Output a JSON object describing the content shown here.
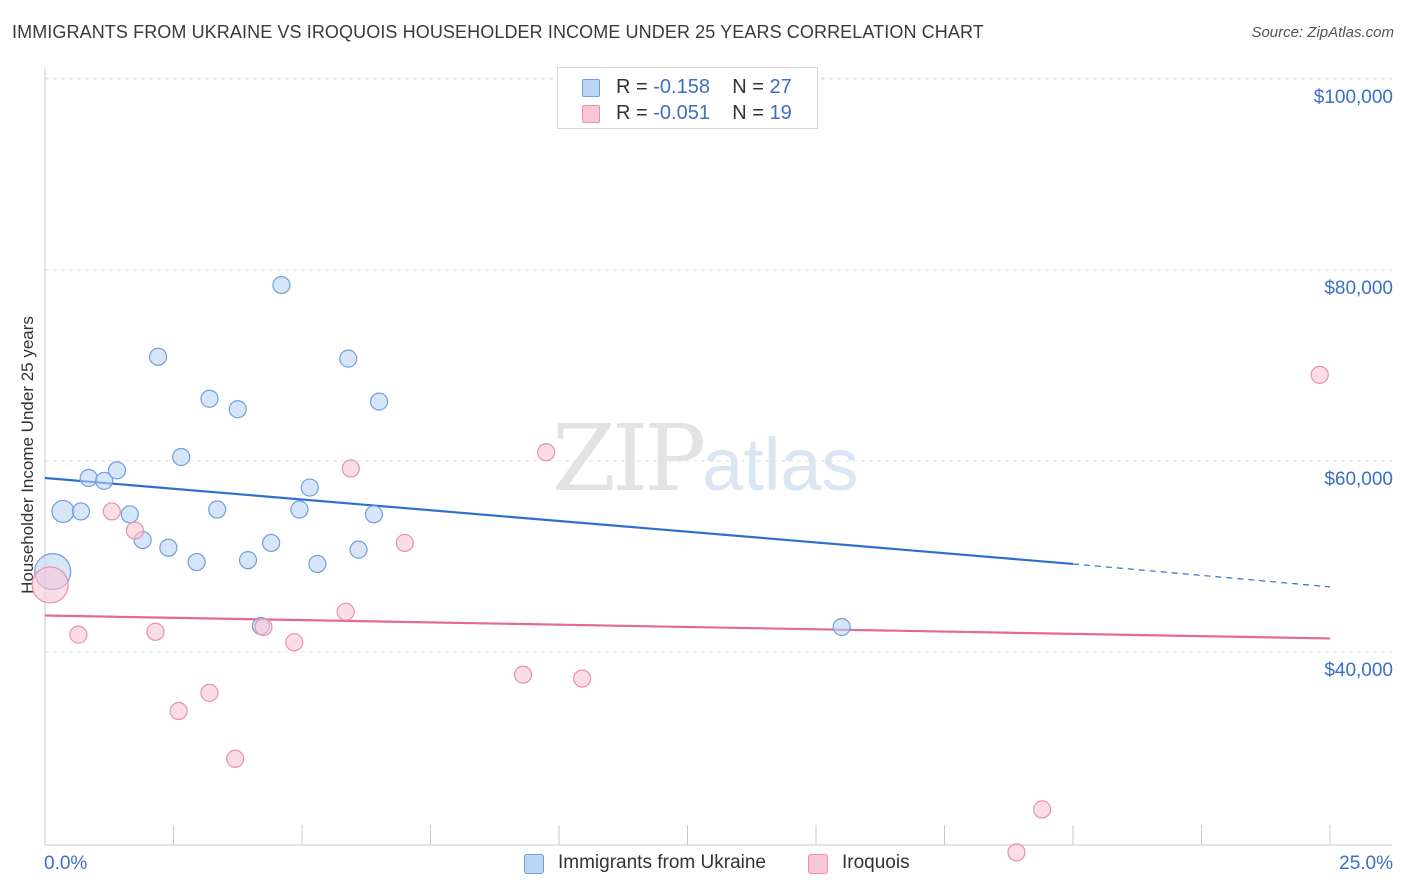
{
  "title": "IMMIGRANTS FROM UKRAINE VS IROQUOIS HOUSEHOLDER INCOME UNDER 25 YEARS CORRELATION CHART",
  "source": "Source: ZipAtlas.com",
  "watermark": {
    "zip": "ZIP",
    "atlas": "atlas"
  },
  "legend_top": [
    {
      "r_label": "R =",
      "r_value": "-0.158",
      "n_label": "N =",
      "n_value": "27"
    },
    {
      "r_label": "R =",
      "r_value": "-0.051",
      "n_label": "N =",
      "n_value": "19"
    }
  ],
  "chart_data": {
    "type": "scatter",
    "title": "IMMIGRANTS FROM UKRAINE VS IROQUOIS HOUSEHOLDER INCOME UNDER 25 YEARS CORRELATION CHART",
    "xlabel": "",
    "ylabel": "Householder Income Under 25 years",
    "xlim": [
      0,
      25
    ],
    "ylim": [
      19500,
      102000
    ],
    "x_tick_labels": {
      "min": "0.0%",
      "max": "25.0%"
    },
    "y_ticks": [
      {
        "value": 40000,
        "label": "$40,000"
      },
      {
        "value": 60000,
        "label": "$60,000"
      },
      {
        "value": 80000,
        "label": "$80,000"
      },
      {
        "value": 100000,
        "label": "$100,000"
      }
    ],
    "colors": {
      "ukraine_fill": "#bcd4f4",
      "ukraine_stroke": "#6f9fdc",
      "ukraine_line": "#2c6fcc",
      "iroquois_fill": "#f8c7d6",
      "iroquois_stroke": "#ec8fad",
      "iroquois_line": "#e26a93",
      "tick_label": "#3b6fc4"
    },
    "series": [
      {
        "name": "Immigrants from Ukraine",
        "r": -0.158,
        "n": 27,
        "trend": {
          "x0": 0,
          "y0": 60000,
          "x1": 20,
          "y1": 51000,
          "x_end": 25,
          "y_end": 48600
        },
        "points": [
          {
            "x": 0.15,
            "y": 50200,
            "size": "large"
          },
          {
            "x": 0.35,
            "y": 56500,
            "size": "medium"
          },
          {
            "x": 0.7,
            "y": 56500
          },
          {
            "x": 0.85,
            "y": 60000
          },
          {
            "x": 1.15,
            "y": 59700
          },
          {
            "x": 1.4,
            "y": 60800
          },
          {
            "x": 1.65,
            "y": 56200
          },
          {
            "x": 1.9,
            "y": 53500
          },
          {
            "x": 2.2,
            "y": 72700
          },
          {
            "x": 2.4,
            "y": 52700
          },
          {
            "x": 2.65,
            "y": 62200
          },
          {
            "x": 2.95,
            "y": 51200
          },
          {
            "x": 3.2,
            "y": 68300
          },
          {
            "x": 3.35,
            "y": 56700
          },
          {
            "x": 3.75,
            "y": 67200
          },
          {
            "x": 3.95,
            "y": 51400
          },
          {
            "x": 4.2,
            "y": 44500
          },
          {
            "x": 4.4,
            "y": 53200
          },
          {
            "x": 4.6,
            "y": 80200
          },
          {
            "x": 4.95,
            "y": 56700
          },
          {
            "x": 5.15,
            "y": 59000
          },
          {
            "x": 5.3,
            "y": 51000
          },
          {
            "x": 5.9,
            "y": 72500
          },
          {
            "x": 6.1,
            "y": 52500
          },
          {
            "x": 6.4,
            "y": 56200
          },
          {
            "x": 6.5,
            "y": 68000
          },
          {
            "x": 15.5,
            "y": 44400
          }
        ]
      },
      {
        "name": "Iroquois",
        "r": -0.051,
        "n": 19,
        "trend": {
          "x0": 0,
          "y0": 45600,
          "x1": 25,
          "y1": 43200
        },
        "points": [
          {
            "x": 0.1,
            "y": 48800,
            "size": "large"
          },
          {
            "x": 0.65,
            "y": 43600
          },
          {
            "x": 1.3,
            "y": 56500
          },
          {
            "x": 1.75,
            "y": 54500
          },
          {
            "x": 2.15,
            "y": 43900
          },
          {
            "x": 2.6,
            "y": 35600
          },
          {
            "x": 3.2,
            "y": 37500
          },
          {
            "x": 3.7,
            "y": 30600
          },
          {
            "x": 4.25,
            "y": 44400
          },
          {
            "x": 4.85,
            "y": 42800
          },
          {
            "x": 5.85,
            "y": 46000
          },
          {
            "x": 5.95,
            "y": 61000
          },
          {
            "x": 7.0,
            "y": 53200
          },
          {
            "x": 9.3,
            "y": 39400
          },
          {
            "x": 9.75,
            "y": 62700
          },
          {
            "x": 10.45,
            "y": 39000
          },
          {
            "x": 18.9,
            "y": 20800
          },
          {
            "x": 19.4,
            "y": 25300
          },
          {
            "x": 24.8,
            "y": 70800
          }
        ]
      }
    ],
    "legend": [
      "Immigrants from Ukraine",
      "Iroquois"
    ]
  }
}
